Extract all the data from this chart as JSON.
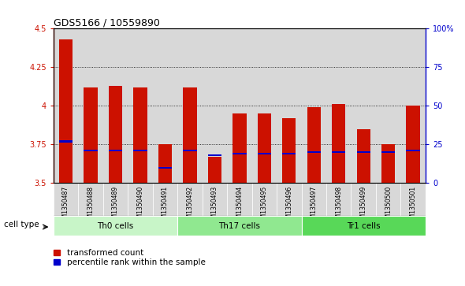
{
  "title": "GDS5166 / 10559890",
  "samples": [
    "GSM1350487",
    "GSM1350488",
    "GSM1350489",
    "GSM1350490",
    "GSM1350491",
    "GSM1350492",
    "GSM1350493",
    "GSM1350494",
    "GSM1350495",
    "GSM1350496",
    "GSM1350497",
    "GSM1350498",
    "GSM1350499",
    "GSM1350500",
    "GSM1350501"
  ],
  "transformed_counts": [
    4.43,
    4.12,
    4.13,
    4.12,
    3.75,
    4.12,
    3.67,
    3.95,
    3.95,
    3.92,
    3.99,
    4.01,
    3.85,
    3.75,
    4.0
  ],
  "percentile_values": [
    27,
    21,
    21,
    21,
    10,
    21,
    18,
    19,
    19,
    19,
    20,
    20,
    20,
    20,
    21
  ],
  "ylim_left": [
    3.5,
    4.5
  ],
  "ylim_right": [
    0,
    100
  ],
  "yticks_left": [
    3.5,
    3.75,
    4.0,
    4.25,
    4.5
  ],
  "ytick_labels_left": [
    "3.5",
    "3.75",
    "4",
    "4.25",
    "4.5"
  ],
  "yticks_right": [
    0,
    25,
    50,
    75,
    100
  ],
  "ytick_labels_right": [
    "0",
    "25",
    "50",
    "75",
    "100%"
  ],
  "grid_lines": [
    3.75,
    4.0,
    4.25
  ],
  "cell_groups": [
    {
      "label": "Th0 cells",
      "start": 0,
      "end": 5,
      "color": "#c8f5c8"
    },
    {
      "label": "Th17 cells",
      "start": 5,
      "end": 10,
      "color": "#90e890"
    },
    {
      "label": "Tr1 cells",
      "start": 10,
      "end": 15,
      "color": "#58d858"
    }
  ],
  "bar_color": "#cc1100",
  "percentile_color": "#0000cc",
  "bar_width": 0.55,
  "percentile_bar_height": 0.012,
  "col_bg_color": "#d8d8d8",
  "legend_red_label": "transformed count",
  "legend_blue_label": "percentile rank within the sample",
  "cell_type_label": "cell type",
  "ylabel_left_color": "#cc1100",
  "ylabel_right_color": "#0000cc",
  "title_fontsize": 9,
  "tick_fontsize": 7,
  "label_fontsize": 7.5
}
